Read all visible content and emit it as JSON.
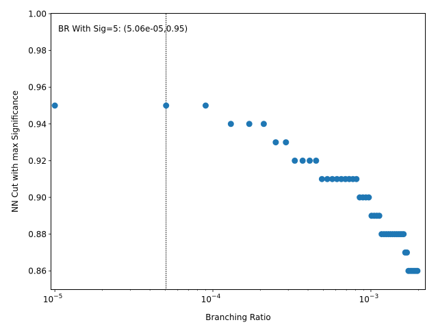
{
  "chart_data": {
    "type": "scatter",
    "title": "",
    "xlabel": "Branching Ratio",
    "ylabel": "NN Cut with max Significance",
    "x_scale": "log",
    "xlim": [
      9.5e-06,
      0.0022
    ],
    "ylim": [
      0.85,
      1.0
    ],
    "grid": false,
    "legend": "none",
    "x_ticks": [
      {
        "value": 1e-05,
        "base": "10",
        "exp": "−5"
      },
      {
        "value": 0.0001,
        "base": "10",
        "exp": "−4"
      },
      {
        "value": 0.001,
        "base": "10",
        "exp": "−3"
      }
    ],
    "y_ticks": [
      "0.86",
      "0.88",
      "0.90",
      "0.92",
      "0.94",
      "0.96",
      "0.98",
      "1.00"
    ],
    "reference_line": {
      "x": 5.06e-05,
      "style": "dashed",
      "color": "#000000"
    },
    "annotation": "BR With Sig=5: (5.06e-05,0.95)",
    "point_color": "#1f77b4",
    "series": [
      {
        "x": [
          1e-05,
          5.06e-05,
          9e-05,
          0.00013,
          0.00017,
          0.00021,
          0.00025,
          0.00029,
          0.00033,
          0.00037,
          0.00041,
          0.00045,
          0.00049,
          0.00053,
          0.00057,
          0.00061,
          0.00065,
          0.00069,
          0.00073,
          0.00077,
          0.00081,
          0.00085,
          0.00089,
          0.00093,
          0.00097,
          0.00101,
          0.00105,
          0.00109,
          0.00113,
          0.00117,
          0.00121,
          0.00125,
          0.00129,
          0.00133,
          0.00137,
          0.00141,
          0.00145,
          0.00149,
          0.00153,
          0.00157,
          0.00161,
          0.00165,
          0.00169,
          0.00173,
          0.00177,
          0.00181,
          0.00185,
          0.00189,
          0.00193,
          0.00197
        ],
        "y": [
          0.95,
          0.95,
          0.95,
          0.94,
          0.94,
          0.94,
          0.93,
          0.93,
          0.92,
          0.92,
          0.92,
          0.92,
          0.91,
          0.91,
          0.91,
          0.91,
          0.91,
          0.91,
          0.91,
          0.91,
          0.91,
          0.9,
          0.9,
          0.9,
          0.9,
          0.89,
          0.89,
          0.89,
          0.89,
          0.88,
          0.88,
          0.88,
          0.88,
          0.88,
          0.88,
          0.88,
          0.88,
          0.88,
          0.88,
          0.88,
          0.88,
          0.87,
          0.87,
          0.86,
          0.86,
          0.86,
          0.86,
          0.86,
          0.86,
          0.86
        ]
      }
    ]
  }
}
